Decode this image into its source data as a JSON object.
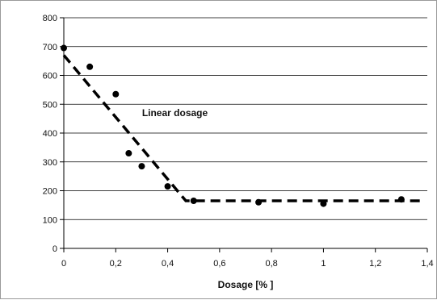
{
  "chart_data": {
    "type": "scatter",
    "title": "",
    "xlabel": "Dosage [% ]",
    "ylabel": "",
    "xlim": [
      0,
      1.4
    ],
    "ylim": [
      0,
      800
    ],
    "x_ticks": [
      0,
      0.2,
      0.4,
      0.6,
      0.8,
      1,
      1.2,
      1.4
    ],
    "x_tick_labels": [
      "0",
      "0,2",
      "0,4",
      "0,6",
      "0,8",
      "1",
      "1,2",
      "1,4"
    ],
    "y_ticks": [
      0,
      100,
      200,
      300,
      400,
      500,
      600,
      700,
      800
    ],
    "y_tick_labels": [
      "0",
      "100",
      "200",
      "300",
      "400",
      "500",
      "600",
      "700",
      "800"
    ],
    "grid": "horizontal",
    "legend": "none",
    "series": [
      {
        "marker": "circle",
        "color": "#000000",
        "points": [
          {
            "x": 0,
            "y": 695
          },
          {
            "x": 0.1,
            "y": 630
          },
          {
            "x": 0.2,
            "y": 535
          },
          {
            "x": 0.25,
            "y": 330
          },
          {
            "x": 0.3,
            "y": 285
          },
          {
            "x": 0.4,
            "y": 215
          },
          {
            "x": 0.5,
            "y": 165
          },
          {
            "x": 0.75,
            "y": 160
          },
          {
            "x": 1,
            "y": 155
          },
          {
            "x": 1.3,
            "y": 170
          }
        ]
      }
    ],
    "trend_line": {
      "style": "dashed",
      "color": "#000000",
      "points": [
        {
          "x": 0,
          "y": 670
        },
        {
          "x": 0.47,
          "y": 165
        },
        {
          "x": 1.38,
          "y": 165
        }
      ]
    },
    "annotations": [
      {
        "text": "Linear dosage",
        "x": 0.35,
        "y": 450
      }
    ]
  }
}
